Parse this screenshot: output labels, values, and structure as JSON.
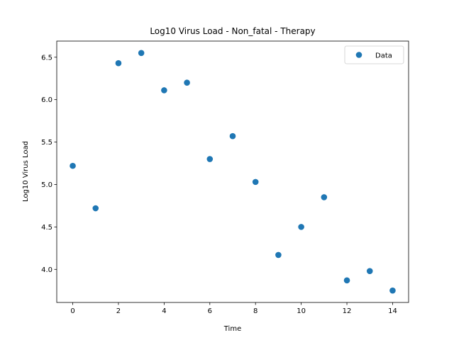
{
  "chart_data": {
    "type": "scatter",
    "title": "Log10 Virus Load - Non_fatal - Therapy",
    "xlabel": "Time",
    "ylabel": "Log10 Virus Load",
    "xlim": [
      -0.7,
      14.7
    ],
    "ylim": [
      3.61,
      6.69
    ],
    "xticks": [
      0,
      2,
      4,
      6,
      8,
      10,
      12,
      14
    ],
    "yticks": [
      4.0,
      4.5,
      5.0,
      5.5,
      6.0,
      6.5
    ],
    "xtick_labels": [
      "0",
      "2",
      "4",
      "6",
      "8",
      "10",
      "12",
      "14"
    ],
    "ytick_labels": [
      "4.0",
      "4.5",
      "5.0",
      "5.5",
      "6.0",
      "6.5"
    ],
    "grid": false,
    "legend_position": "top-right",
    "marker_color": "#1f77b4",
    "series": [
      {
        "name": "Data",
        "x": [
          0,
          1,
          2,
          3,
          4,
          5,
          6,
          7,
          8,
          9,
          10,
          11,
          12,
          13,
          14
        ],
        "y": [
          5.22,
          4.72,
          6.43,
          6.55,
          6.11,
          6.2,
          5.3,
          5.57,
          5.03,
          4.17,
          4.5,
          4.85,
          3.87,
          3.98,
          3.75
        ]
      }
    ]
  }
}
